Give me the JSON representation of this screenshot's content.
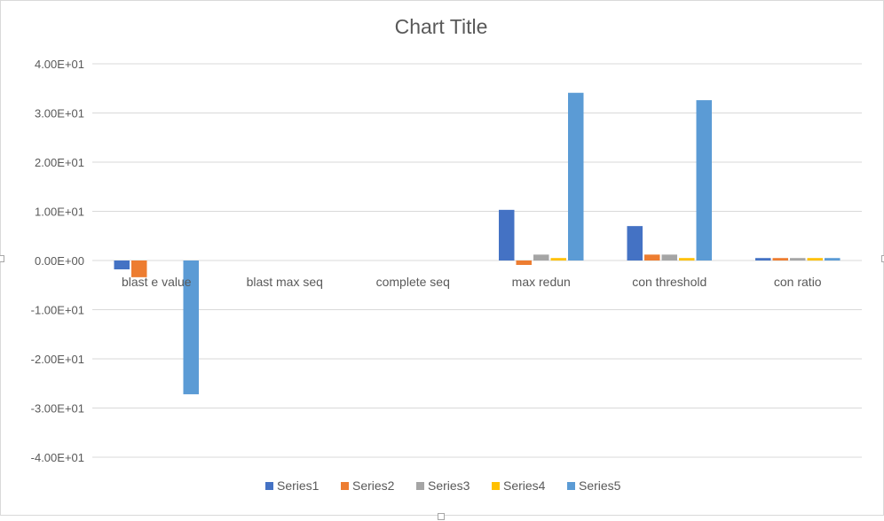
{
  "chart_data": {
    "type": "bar",
    "title": "Chart Title",
    "categories": [
      "blast e value",
      "blast max seq",
      "complete seq",
      "max redun",
      "con threshold",
      "con ratio"
    ],
    "series": [
      {
        "name": "Series1",
        "color": "#4472C4",
        "values": [
          -1.8,
          0,
          0,
          10.3,
          7.0,
          0.5
        ]
      },
      {
        "name": "Series2",
        "color": "#ED7D31",
        "values": [
          -3.4,
          0,
          0,
          -0.9,
          1.2,
          0.5
        ]
      },
      {
        "name": "Series3",
        "color": "#A5A5A5",
        "values": [
          0,
          0,
          0,
          1.2,
          1.2,
          0.5
        ]
      },
      {
        "name": "Series4",
        "color": "#FFC000",
        "values": [
          0,
          0,
          0,
          0.5,
          0.5,
          0.5
        ]
      },
      {
        "name": "Series5",
        "color": "#5B9BD5",
        "values": [
          -27.2,
          0,
          0,
          34.1,
          32.6,
          0.5
        ]
      }
    ],
    "ylim": [
      -40,
      40
    ],
    "yticks": [
      40,
      30,
      20,
      10,
      0,
      -10,
      -20,
      -30,
      -40
    ],
    "ytick_labels": [
      "4.00E+01",
      "3.00E+01",
      "2.00E+01",
      "1.00E+01",
      "0.00E+00",
      "-1.00E+01",
      "-2.00E+01",
      "-3.00E+01",
      "-4.00E+01"
    ],
    "xlabel": "",
    "ylabel": "",
    "grid": true,
    "legend_position": "bottom"
  }
}
